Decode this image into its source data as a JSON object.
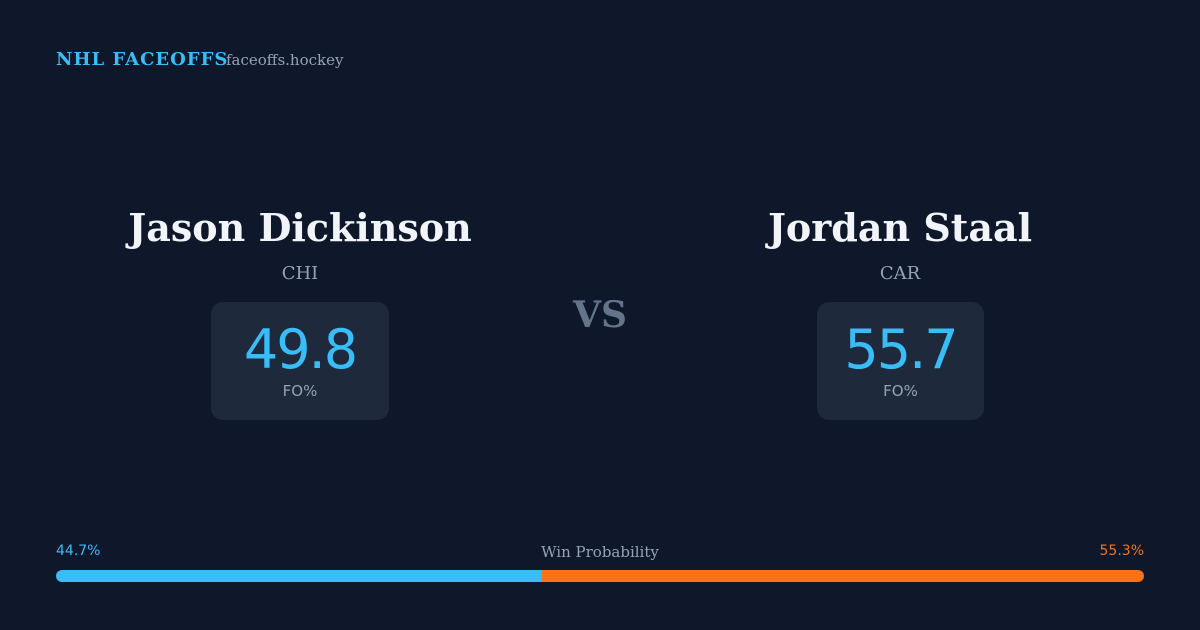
{
  "header": {
    "title": "NHL FACEOFFS",
    "site": "faceoffs.hockey"
  },
  "players": [
    {
      "name": "Jason Dickinson",
      "team": "CHI",
      "stat": 49.8,
      "stat_label": "FO%"
    },
    {
      "name": "Jordan Staal",
      "team": "CAR",
      "stat": 55.7,
      "stat_label": "FO%"
    }
  ],
  "vs": "VS",
  "win_probability": {
    "label": "Win Probability",
    "values": [
      44.7,
      55.3
    ],
    "value_labels": [
      "44.7%",
      "55.3%"
    ],
    "colors": [
      "#38bdf8",
      "#f97316"
    ]
  }
}
